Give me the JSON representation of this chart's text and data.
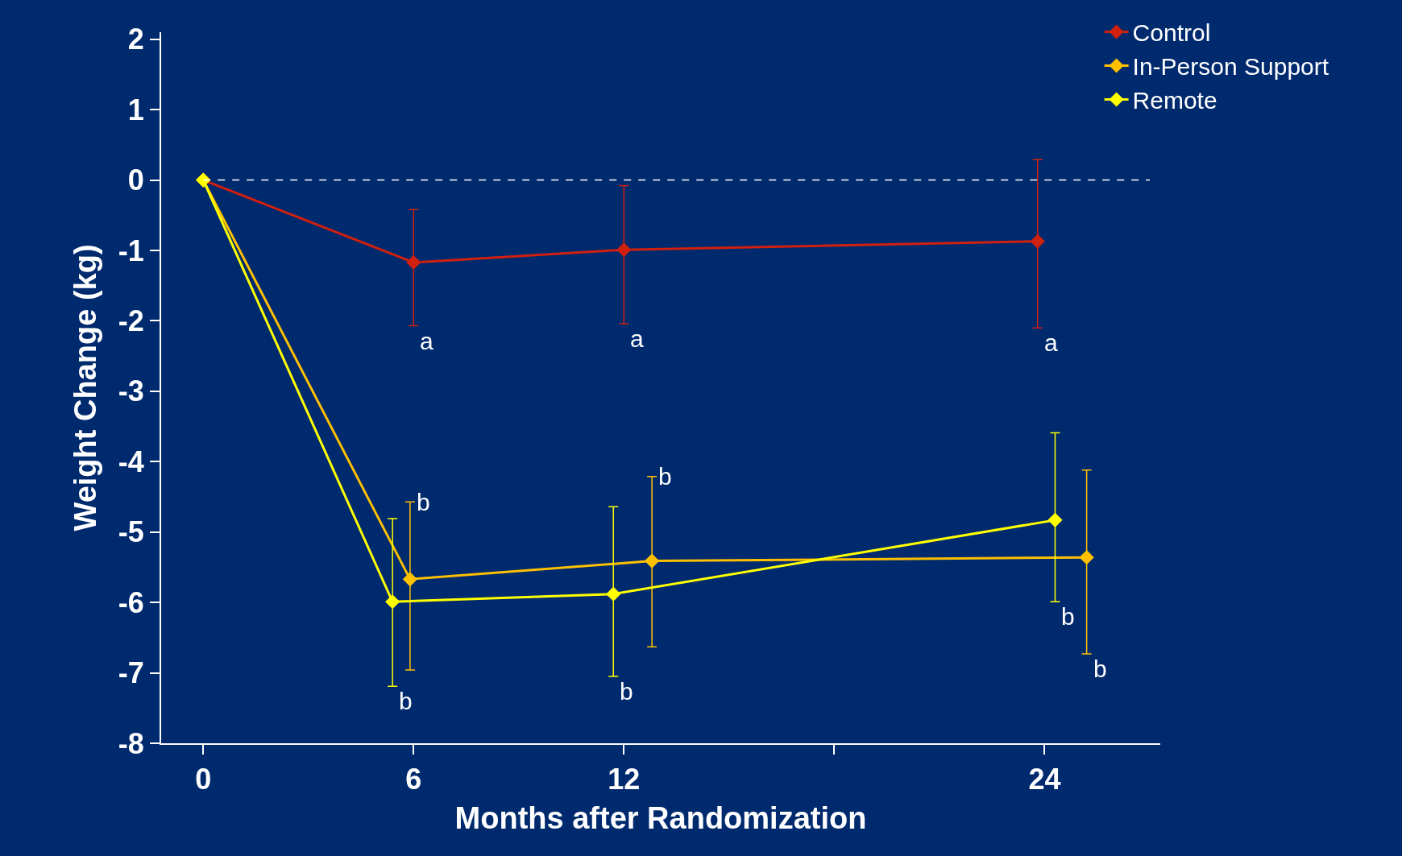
{
  "chart_data": {
    "type": "line",
    "xlabel": "Months after Randomization",
    "ylabel": "Weight Change (kg)",
    "xlim": [
      -1.2,
      27.3
    ],
    "ylim": [
      -8,
      2.1
    ],
    "xticks": [
      0,
      6,
      12,
      {
        "value": 18,
        "label": null
      },
      24
    ],
    "yticks": [
      -8,
      -7,
      -6,
      -5,
      -4,
      -3,
      -2,
      -1,
      0,
      1,
      2
    ],
    "marker": "diamond",
    "line_style": "solid",
    "grid": false,
    "legend": "top right",
    "series": [
      {
        "name": "Control",
        "color": "#d0200f",
        "x": [
          0,
          6,
          12,
          23.8
        ],
        "values": [
          0,
          -1.17,
          -0.99,
          -0.87
        ],
        "errors": [
          null,
          [
            -2.07,
            -0.42
          ],
          [
            -2.04,
            -0.08
          ],
          [
            -2.1,
            0.29
          ]
        ]
      },
      {
        "name": "In-Person Support",
        "color": "#ffc000",
        "x": [
          0,
          5.9,
          12.8,
          25.2
        ],
        "values": [
          0,
          -5.67,
          -5.41,
          -5.36
        ],
        "errors": [
          null,
          [
            -6.96,
            -4.57
          ],
          [
            -6.63,
            -4.21
          ],
          [
            -6.73,
            -4.12
          ]
        ]
      },
      {
        "name": "Remote",
        "color": "#ffff00",
        "x": [
          0,
          5.4,
          11.7,
          24.3
        ],
        "values": [
          0,
          -5.99,
          -5.88,
          -4.83
        ],
        "errors": [
          null,
          [
            -7.19,
            -4.81
          ],
          [
            -7.05,
            -4.64
          ],
          [
            -5.99,
            -3.59
          ]
        ]
      }
    ],
    "ref_lines": [
      {
        "axis": "y",
        "value": 0,
        "label": null,
        "color": "#ffffff",
        "line_style": "dashed"
      }
    ],
    "annotations": [
      {
        "text": "a",
        "x": 6,
        "y": -2.07
      },
      {
        "text": "a",
        "x": 12,
        "y": -2.04
      },
      {
        "text": "a",
        "x": 23.8,
        "y": -2.1
      },
      {
        "text": "b",
        "x": 5.9,
        "y": -4.57
      },
      {
        "text": "b",
        "x": 12.8,
        "y": -4.21
      },
      {
        "text": "b",
        "x": 25.2,
        "y": -6.73
      },
      {
        "text": "b",
        "x": 5.4,
        "y": -7.19
      },
      {
        "text": "b",
        "x": 11.7,
        "y": -7.05
      },
      {
        "text": "b",
        "x": 24.3,
        "y": -5.99
      }
    ]
  }
}
